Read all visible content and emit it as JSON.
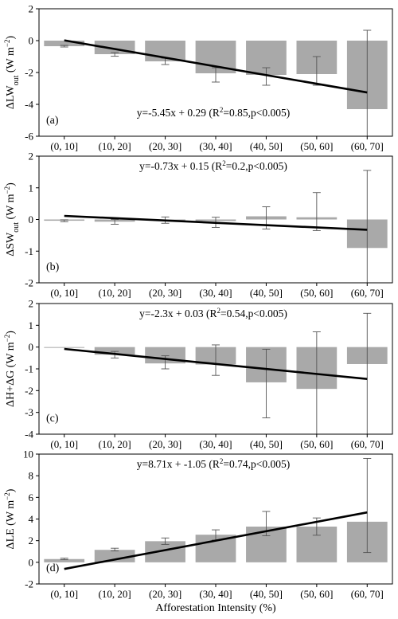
{
  "chart_data": [
    {
      "type": "bar",
      "panel_label": "(a)",
      "ylabel_main": "ΔLW",
      "ylabel_sub": "out",
      "ylabel_unit": " (W m",
      "ylabel_exp": "−2",
      "ylabel_close": ")",
      "equation": "y=-5.45x + 0.29 (R2=0.85,p<0.005)",
      "equation_parts": [
        "y=-5.45x + 0.29 (R",
        "2",
        "=0.85,p<0.005)"
      ],
      "equation_position": "bottom",
      "ylim": [
        -6,
        2
      ],
      "yticks": [
        -6,
        -4,
        -2,
        0,
        2
      ],
      "show_xticklabels": true,
      "values": [
        -0.35,
        -0.85,
        -1.3,
        -2.05,
        -2.15,
        -2.1,
        -4.3
      ],
      "err_low": [
        -0.4,
        -0.98,
        -1.5,
        -2.6,
        -2.8,
        -2.8,
        -6.0
      ],
      "err_high": [
        -0.3,
        -0.75,
        -1.1,
        -1.7,
        -1.7,
        -1.0,
        0.65
      ],
      "fit": {
        "slope": -5.45,
        "intercept": 0.29
      }
    },
    {
      "type": "bar",
      "panel_label": "(b)",
      "ylabel_main": "ΔSW",
      "ylabel_sub": "out",
      "ylabel_unit": " (W m",
      "ylabel_exp": "−2",
      "ylabel_close": ")",
      "equation": "y=-0.73x + 0.15 (R2=0.2,p<0.005)",
      "equation_parts": [
        "y=-0.73x + 0.15 (R",
        "2",
        "=0.2,p<0.005)"
      ],
      "equation_position": "top",
      "ylim": [
        -2,
        2
      ],
      "yticks": [
        -2,
        -1,
        0,
        1,
        2
      ],
      "show_xticklabels": true,
      "values": [
        -0.04,
        -0.07,
        -0.02,
        -0.05,
        0.1,
        0.07,
        -0.9
      ],
      "err_low": [
        -0.07,
        -0.15,
        -0.12,
        -0.25,
        -0.3,
        -0.35,
        -2.0
      ],
      "err_high": [
        -0.01,
        0.0,
        0.08,
        0.07,
        0.4,
        0.85,
        1.55
      ],
      "fit": {
        "slope": -0.73,
        "intercept": 0.15
      }
    },
    {
      "type": "bar",
      "panel_label": "(c)",
      "ylabel_main": "ΔH+ΔG",
      "ylabel_sub": "",
      "ylabel_unit": " (W m",
      "ylabel_exp": "−2",
      "ylabel_close": ")",
      "equation": "y=-2.3x + 0.03 (R2=0.54,p<0.005)",
      "equation_parts": [
        "y=-2.3x + 0.03 (R",
        "2",
        "=0.54,p<0.005)"
      ],
      "equation_position": "top",
      "ylim": [
        -4,
        2
      ],
      "yticks": [
        -4,
        -3,
        -2,
        -1,
        0,
        1,
        2
      ],
      "show_xticklabels": true,
      "values": [
        0.0,
        -0.35,
        -0.75,
        -0.8,
        -1.62,
        -1.92,
        -0.78
      ],
      "err_low": [
        0.0,
        -0.5,
        -1.0,
        -1.3,
        -3.25,
        -4.0,
        -4.0
      ],
      "err_high": [
        0.0,
        -0.2,
        -0.4,
        0.1,
        -0.1,
        0.7,
        1.55
      ],
      "fit": {
        "slope": -2.3,
        "intercept": 0.03
      }
    },
    {
      "type": "bar",
      "panel_label": "(d)",
      "ylabel_main": "ΔLE",
      "ylabel_sub": "",
      "ylabel_unit": " (W m",
      "ylabel_exp": "−2",
      "ylabel_close": ")",
      "equation": "y=8.71x + -1.05 (R2=0.74,p<0.005)",
      "equation_parts": [
        "y=8.71x + -1.05 (R",
        "2",
        "=0.74,p<0.005)"
      ],
      "equation_position": "top",
      "ylim": [
        -2,
        10
      ],
      "yticks": [
        -2,
        0,
        2,
        4,
        6,
        8,
        10
      ],
      "show_xticklabels": true,
      "values": [
        0.3,
        1.15,
        1.95,
        2.55,
        3.3,
        3.3,
        3.75
      ],
      "err_low": [
        0.25,
        1.05,
        1.65,
        2.05,
        2.45,
        2.5,
        0.9
      ],
      "err_high": [
        0.38,
        1.3,
        2.25,
        3.0,
        4.7,
        4.1,
        9.6
      ],
      "fit": {
        "slope": 8.71,
        "intercept": -1.05
      }
    }
  ],
  "categories": [
    "(0, 10]",
    "(10, 20]",
    "(20, 30]",
    "(30, 40]",
    "(40, 50]",
    "(50, 60]",
    "(60, 70]"
  ],
  "xlabel": "Afforestation Intensity (%)",
  "colors": {
    "bar": "#a9a9a9",
    "fit_line": "#000000",
    "errorbar": "#555555",
    "axis": "#000000"
  }
}
